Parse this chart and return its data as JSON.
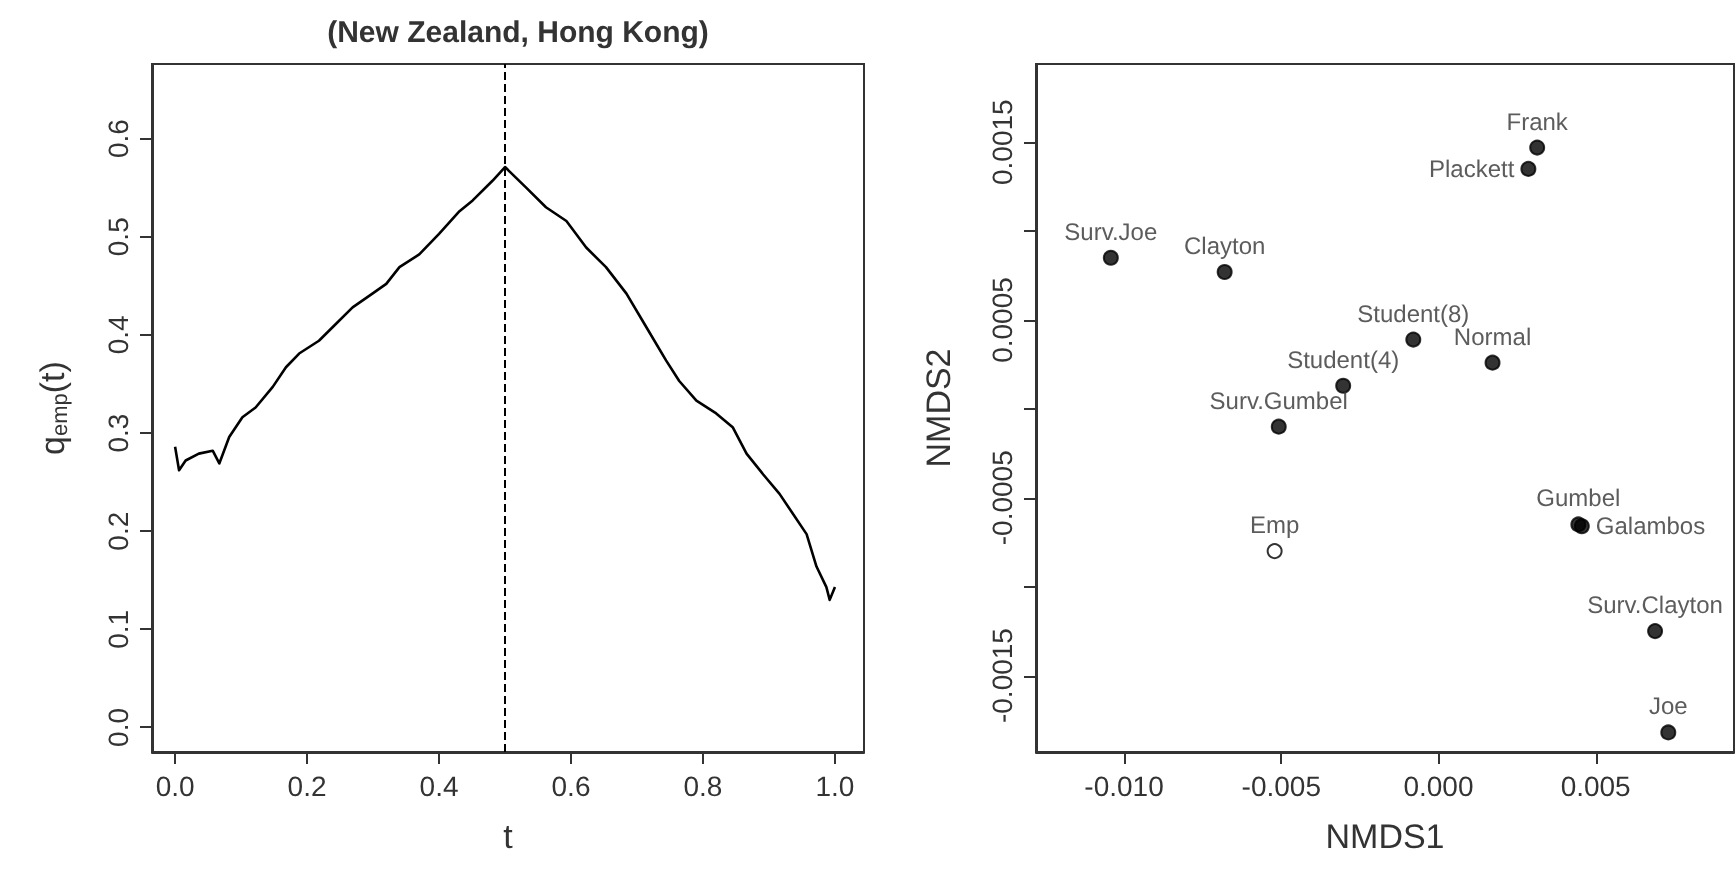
{
  "chart_data": [
    {
      "type": "line",
      "title": "(New Zealand, Hong Kong)",
      "xlabel": "t",
      "ylabel": "q$_{emp}$(t)",
      "series": [
        {
          "color": "#000000",
          "x": [
            0,
            0.006,
            0.016,
            0.036,
            0.057,
            0.067,
            0.082,
            0.102,
            0.122,
            0.148,
            0.168,
            0.188,
            0.218,
            0.239,
            0.269,
            0.299,
            0.32,
            0.34,
            0.37,
            0.4,
            0.431,
            0.451,
            0.481,
            0.5,
            0.532,
            0.562,
            0.593,
            0.623,
            0.653,
            0.684,
            0.714,
            0.744,
            0.764,
            0.79,
            0.82,
            0.845,
            0.866,
            0.891,
            0.916,
            0.936,
            0.957,
            0.972,
            0.987,
            0.992,
            1.0
          ],
          "values": [
            0.286,
            0.262,
            0.272,
            0.279,
            0.282,
            0.269,
            0.296,
            0.316,
            0.326,
            0.347,
            0.367,
            0.381,
            0.394,
            0.408,
            0.428,
            0.442,
            0.452,
            0.469,
            0.482,
            0.503,
            0.526,
            0.537,
            0.557,
            0.571,
            0.55,
            0.53,
            0.516,
            0.489,
            0.469,
            0.442,
            0.408,
            0.374,
            0.353,
            0.333,
            0.32,
            0.306,
            0.279,
            0.258,
            0.238,
            0.218,
            0.197,
            0.164,
            0.143,
            0.13,
            0.143
          ]
        }
      ],
      "xlim": [
        -0.035,
        1.044
      ],
      "xticks": [
        {
          "value": 0,
          "label": "0.0"
        },
        0.2,
        0.4,
        0.6,
        0.8,
        {
          "value": 1,
          "label": "1.0"
        }
      ],
      "ylim": [
        -0.025,
        0.676
      ],
      "yticks": [
        {
          "value": 0,
          "label": "0.0"
        },
        0.1,
        0.2,
        0.3,
        0.4,
        0.5,
        0.6
      ],
      "ref_lines": [
        {
          "axis": "x",
          "value": 0.5,
          "color": "#000000",
          "line_style": "dashed"
        }
      ],
      "marker": "none",
      "line_style": "solid"
    },
    {
      "type": "scatter",
      "xlabel": "NMDS1",
      "ylabel": "NMDS2",
      "series": [
        {
          "color": "#000000",
          "x": [
            0.00314,
            0.00286,
            -0.01042,
            -0.0068,
            -0.0008,
            0.00172,
            -0.00303,
            -0.00508,
            0.00445,
            0.00456,
            0.00689,
            0.00731
          ],
          "values": [
            0.00147,
            0.00135,
            0.00085,
            0.00077,
            0.00039,
            0.00026,
            0.00013,
            -0.0001,
            -0.00065,
            -0.00066,
            -0.00125,
            -0.00182
          ],
          "value_labels": [
            "Frank",
            "Plackett",
            "Surv.Joe",
            "Clayton",
            "Student(8)",
            "Normal",
            "Student(4)",
            "Surv.Gumbel",
            "Gumbel",
            "Galambos",
            "Surv.Clayton",
            "Joe"
          ]
        },
        {
          "color": "#ffffff",
          "x": [
            -0.00521
          ],
          "values": [
            -0.0008
          ],
          "value_labels": [
            "Emp"
          ]
        }
      ],
      "xlim": [
        -0.0128,
        0.0094
      ],
      "xticks": [
        {
          "value": -0.01,
          "label": "-0.010"
        },
        -0.005,
        {
          "value": 0,
          "label": "0.000"
        },
        0.005
      ],
      "ylim": [
        -0.00193,
        0.00194
      ],
      "yticks": [
        0.0015,
        {
          "value": 0.001,
          "label": null
        },
        0.0005,
        {
          "value": 0,
          "label": null
        },
        -0.0005,
        {
          "value": -0.001,
          "label": null
        },
        -0.0015
      ],
      "marker": "circle"
    }
  ]
}
